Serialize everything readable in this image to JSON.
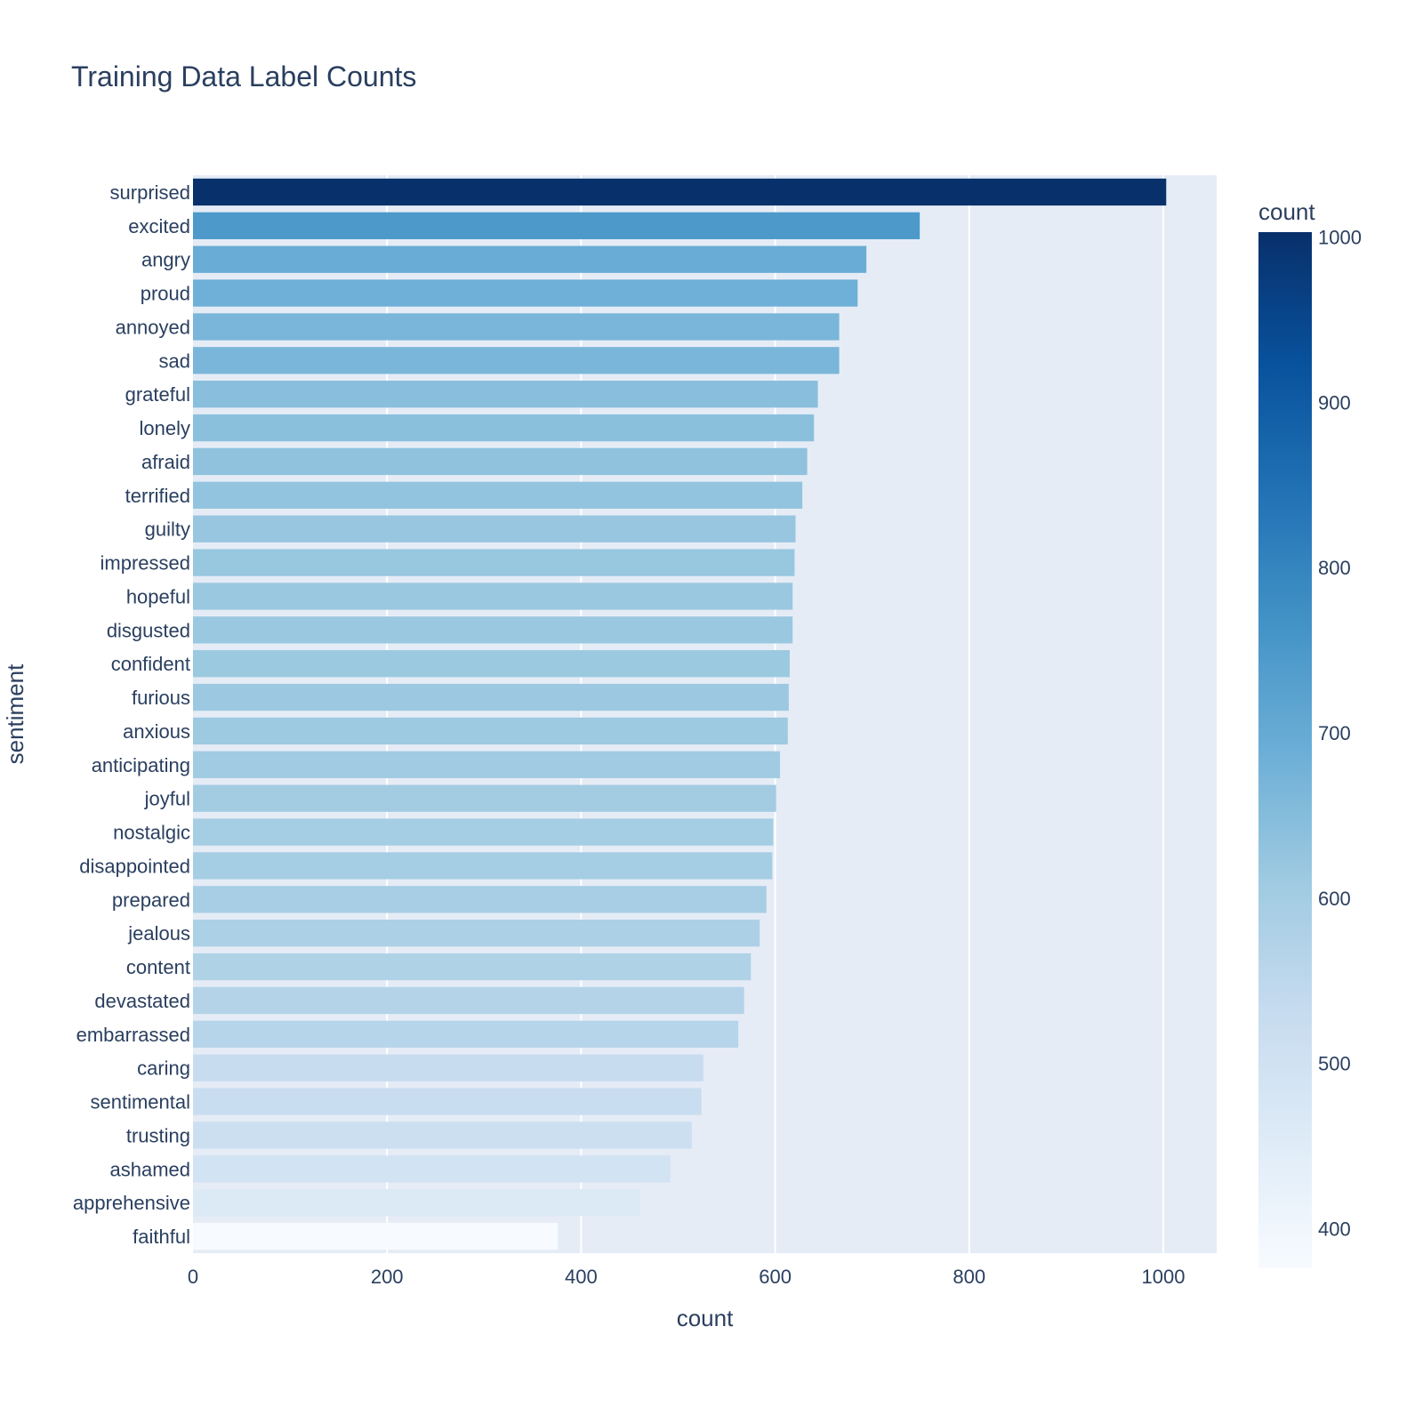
{
  "chart_data": {
    "type": "bar",
    "orientation": "horizontal",
    "title": "Training Data Label Counts",
    "xlabel": "count",
    "ylabel": "sentiment",
    "xlim": [
      0,
      1055
    ],
    "x_ticks": [
      0,
      200,
      400,
      600,
      800,
      1000
    ],
    "grid": true,
    "categories": [
      "surprised",
      "excited",
      "angry",
      "proud",
      "annoyed",
      "sad",
      "grateful",
      "lonely",
      "afraid",
      "terrified",
      "guilty",
      "impressed",
      "hopeful",
      "disgusted",
      "confident",
      "furious",
      "anxious",
      "anticipating",
      "joyful",
      "nostalgic",
      "disappointed",
      "prepared",
      "jealous",
      "content",
      "devastated",
      "embarrassed",
      "caring",
      "sentimental",
      "trusting",
      "ashamed",
      "apprehensive",
      "faithful"
    ],
    "values": [
      1003,
      749,
      694,
      685,
      666,
      666,
      644,
      640,
      633,
      628,
      621,
      620,
      618,
      618,
      615,
      614,
      613,
      605,
      601,
      598,
      597,
      591,
      584,
      575,
      568,
      562,
      526,
      524,
      514,
      492,
      461,
      376
    ],
    "colorbar": {
      "title": "count",
      "range": [
        376,
        1003
      ],
      "ticks": [
        400,
        500,
        600,
        700,
        800,
        900,
        1000
      ],
      "colorscale": "Blues"
    },
    "colors": {
      "plot_background": "#e5ecf6",
      "gridline": "#ffffff",
      "text": "#2a3f5f"
    }
  }
}
